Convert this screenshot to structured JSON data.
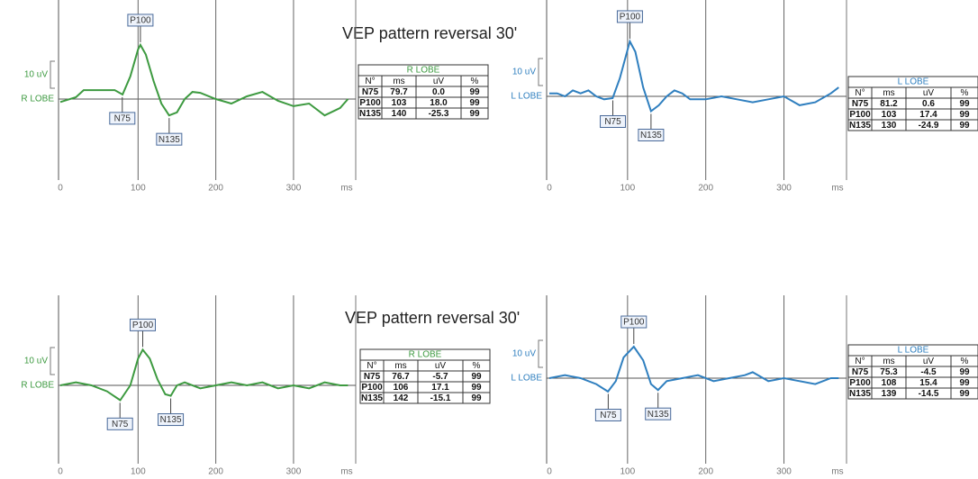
{
  "records": [
    {
      "title": "VEP pattern reversal 30'",
      "panels": [
        {
          "scale": "10 uV",
          "lobe": "R LOBE",
          "color": "#3d9a40",
          "xlim": [
            0,
            380
          ],
          "xticks": [
            0,
            100,
            200,
            300
          ],
          "x_unit": "ms",
          "table": {
            "title": "R LOBE",
            "header": [
              "N°",
              "ms",
              "uV",
              "%"
            ],
            "rows": [
              [
                "N75",
                "79.7",
                "0.0",
                "99"
              ],
              [
                "P100",
                "103",
                "18.0",
                "99"
              ],
              [
                "N135",
                "140",
                "-25.3",
                "99"
              ]
            ]
          },
          "trace": {
            "ms": [
              0,
              20,
              30,
              50,
              70,
              80,
              90,
              100,
              103,
              110,
              120,
              130,
              140,
              150,
              160,
              170,
              180,
              200,
              220,
              240,
              260,
              280,
              300,
              320,
              340,
              360,
              370
            ],
            "uv": [
              -1,
              0.6,
              3,
              3,
              3,
              1.5,
              7.6,
              16.7,
              18.2,
              15,
              6,
              -1.5,
              -5.5,
              -4.5,
              0,
              2.4,
              2.1,
              0,
              -1.5,
              0.9,
              2.4,
              -0.6,
              -2.4,
              -1.5,
              -5.5,
              -3,
              0
            ]
          }
        },
        {
          "scale": "10 uV",
          "lobe": "L LOBE",
          "color": "#2f7fbf",
          "xlim": [
            0,
            380
          ],
          "xticks": [
            0,
            100,
            200,
            300
          ],
          "x_unit": "ms",
          "table": {
            "title": "L LOBE",
            "header": [
              "N°",
              "ms",
              "uV",
              "%"
            ],
            "rows": [
              [
                "N75",
                "81.2",
                "0.6",
                "99"
              ],
              [
                "P100",
                "103",
                "17.4",
                "99"
              ],
              [
                "N135",
                "130",
                "-24.9",
                "99"
              ]
            ]
          },
          "trace": {
            "ms": [
              0,
              10,
              20,
              30,
              40,
              50,
              60,
              70,
              81,
              90,
              103,
              110,
              120,
              130,
              140,
              150,
              160,
              170,
              180,
              200,
              220,
              240,
              260,
              280,
              300,
              320,
              340,
              360,
              370
            ],
            "uv": [
              1,
              1,
              0,
              2,
              1,
              2,
              0,
              -1,
              -0.6,
              6,
              18.5,
              15,
              3,
              -5,
              -3,
              0,
              2,
              1,
              -1,
              -1,
              0,
              -1,
              -2,
              -1,
              0,
              -3,
              -2,
              1,
              3
            ]
          }
        }
      ]
    },
    {
      "title": "VEP pattern reversal 30'",
      "panels": [
        {
          "scale": "10 uV",
          "lobe": "R LOBE",
          "color": "#3d9a40",
          "xlim": [
            0,
            380
          ],
          "xticks": [
            0,
            100,
            200,
            300
          ],
          "x_unit": "ms",
          "table": {
            "title": "R LOBE",
            "header": [
              "N°",
              "ms",
              "uV",
              "%"
            ],
            "rows": [
              [
                "N75",
                "76.7",
                "-5.7",
                "99"
              ],
              [
                "P100",
                "106",
                "17.1",
                "99"
              ],
              [
                "N135",
                "142",
                "-15.1",
                "99"
              ]
            ]
          },
          "trace": {
            "ms": [
              0,
              20,
              40,
              60,
              77,
              90,
              100,
              106,
              115,
              125,
              135,
              142,
              150,
              160,
              180,
              200,
              220,
              240,
              260,
              280,
              300,
              320,
              340,
              360,
              370
            ],
            "uv": [
              0,
              1,
              0,
              -2,
              -5,
              0,
              9,
              12,
              9,
              2,
              -3,
              -3.5,
              0,
              1,
              -1,
              0,
              1,
              0,
              1,
              -1,
              0,
              -1,
              1,
              0,
              0
            ]
          }
        },
        {
          "scale": "10 uV",
          "lobe": "L LOBE",
          "color": "#2f7fbf",
          "xlim": [
            0,
            380
          ],
          "xticks": [
            0,
            100,
            200,
            300
          ],
          "x_unit": "ms",
          "table": {
            "title": "L LOBE",
            "header": [
              "N°",
              "ms",
              "uV",
              "%"
            ],
            "rows": [
              [
                "N75",
                "75.3",
                "-4.5",
                "99"
              ],
              [
                "P100",
                "108",
                "15.4",
                "99"
              ],
              [
                "N135",
                "139",
                "-14.5",
                "99"
              ]
            ]
          },
          "trace": {
            "ms": [
              0,
              20,
              40,
              60,
              75,
              85,
              95,
              108,
              120,
              130,
              139,
              150,
              170,
              190,
              210,
              230,
              250,
              260,
              280,
              300,
              320,
              340,
              360,
              370
            ],
            "uv": [
              0,
              1,
              0,
              -2,
              -4.5,
              -1,
              7,
              10.6,
              6,
              -2,
              -4,
              -1,
              0,
              1,
              -1,
              0,
              1,
              2,
              -1,
              0,
              -1,
              -2,
              0,
              0
            ]
          }
        }
      ]
    }
  ]
}
